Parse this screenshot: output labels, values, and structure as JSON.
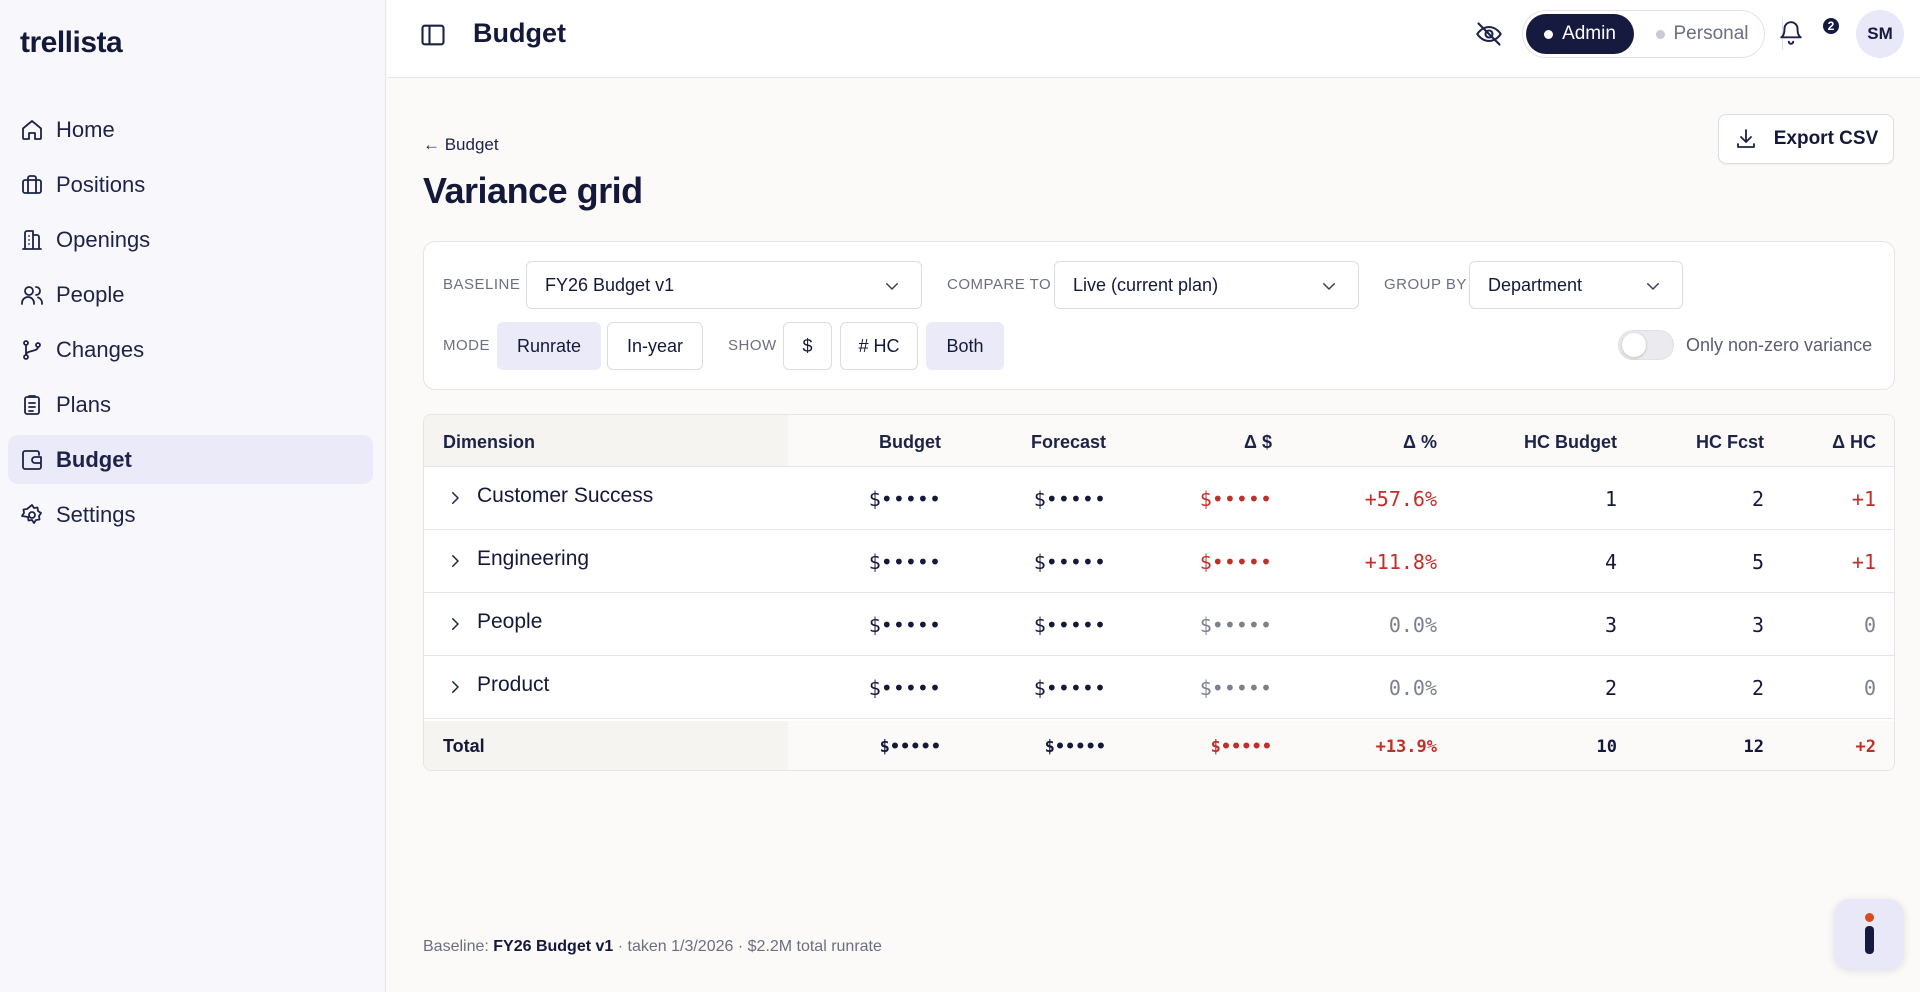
{
  "app": {
    "logo": "trellista"
  },
  "sidebar": {
    "items": [
      {
        "label": "Home",
        "icon": "home-icon"
      },
      {
        "label": "Positions",
        "icon": "briefcase-icon"
      },
      {
        "label": "Openings",
        "icon": "building-icon"
      },
      {
        "label": "People",
        "icon": "users-icon"
      },
      {
        "label": "Changes",
        "icon": "git-branch-icon"
      },
      {
        "label": "Plans",
        "icon": "clipboard-icon"
      },
      {
        "label": "Budget",
        "icon": "wallet-icon",
        "active": true
      },
      {
        "label": "Settings",
        "icon": "gear-icon"
      }
    ]
  },
  "header": {
    "title": "Budget",
    "mode": {
      "admin": "Admin",
      "personal": "Personal",
      "selected": "Admin"
    },
    "notifications_count": "2",
    "avatar_initials": "SM"
  },
  "page": {
    "back_label": "← Budget",
    "title": "Variance grid",
    "export_label": "Export CSV"
  },
  "filters": {
    "baseline_label": "BASELINE",
    "baseline_value": "FY26 Budget v1",
    "compare_label": "COMPARE TO",
    "compare_value": "Live (current plan)",
    "group_label": "GROUP BY",
    "group_value": "Department",
    "mode_label": "MODE",
    "mode_options": [
      "Runrate",
      "In-year"
    ],
    "mode_selected": "Runrate",
    "show_label": "SHOW",
    "show_options": [
      "$",
      "# HC",
      "Both"
    ],
    "show_selected": "Both",
    "nonzero_label": "Only non-zero variance",
    "nonzero_on": false
  },
  "table": {
    "columns": [
      "Dimension",
      "Budget",
      "Forecast",
      "Δ $",
      "Δ %",
      "HC Budget",
      "HC Fcst",
      "Δ HC"
    ],
    "rows": [
      {
        "dimension": "Customer Success",
        "budget": "$•••••",
        "forecast": "$•••••",
        "delta_usd": "$•••••",
        "delta_pct": "+57.6%",
        "hc_budget": "1",
        "hc_fcst": "2",
        "delta_hc": "+1"
      },
      {
        "dimension": "Engineering",
        "budget": "$•••••",
        "forecast": "$•••••",
        "delta_usd": "$•••••",
        "delta_pct": "+11.8%",
        "hc_budget": "4",
        "hc_fcst": "5",
        "delta_hc": "+1"
      },
      {
        "dimension": "People",
        "budget": "$•••••",
        "forecast": "$•••••",
        "delta_usd": "$•••••",
        "delta_pct": "0.0%",
        "hc_budget": "3",
        "hc_fcst": "3",
        "delta_hc": "0"
      },
      {
        "dimension": "Product",
        "budget": "$•••••",
        "forecast": "$•••••",
        "delta_usd": "$•••••",
        "delta_pct": "0.0%",
        "hc_budget": "2",
        "hc_fcst": "2",
        "delta_hc": "0"
      }
    ],
    "total": {
      "label": "Total",
      "budget": "$•••••",
      "forecast": "$•••••",
      "delta_usd": "$•••••",
      "delta_pct": "+13.9%",
      "hc_budget": "10",
      "hc_fcst": "12",
      "delta_hc": "+2"
    }
  },
  "footer": {
    "prefix": "Baseline: ",
    "baseline_name": "FY26 Budget v1",
    "suffix": " · taken 1/3/2026 · $2.2M total runrate"
  },
  "colors": {
    "accent": "#151a3e",
    "accent_soft": "#ebeaf8",
    "negative": "#c0302a",
    "muted": "#7c7f8e"
  }
}
